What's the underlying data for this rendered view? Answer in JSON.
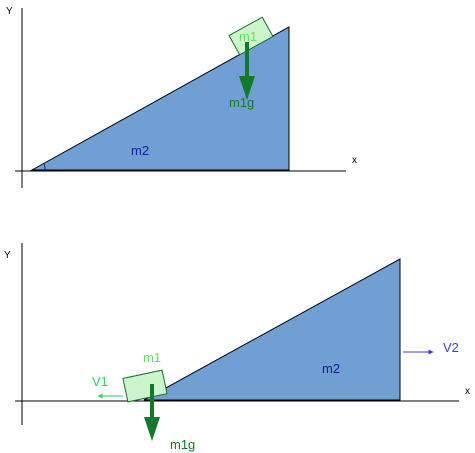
{
  "colors": {
    "wedge_fill": "#6f9fd3",
    "wedge_stroke": "#000000",
    "block_fill": "#ccf5cc",
    "block_stroke": "#1d6b2b",
    "block_label": "#5fe35f",
    "gravity_arrow": "#117a2b",
    "wedge_label": "#1a1aa8",
    "v1_arrow": "#2bd35e",
    "v2_arrow": "#3a3ae0",
    "axes": "#000000"
  },
  "top_diagram": {
    "y_axis_label": "Y",
    "x_axis_label": "x",
    "wedge_label": "m2",
    "block_label": "m1",
    "force_label": "m1g"
  },
  "bottom_diagram": {
    "y_axis_label": "Y",
    "x_axis_label": "x",
    "wedge_label": "m2",
    "block_label": "m1",
    "force_label": "m1g",
    "block_velocity_label": "V1",
    "wedge_velocity_label": "V2"
  }
}
